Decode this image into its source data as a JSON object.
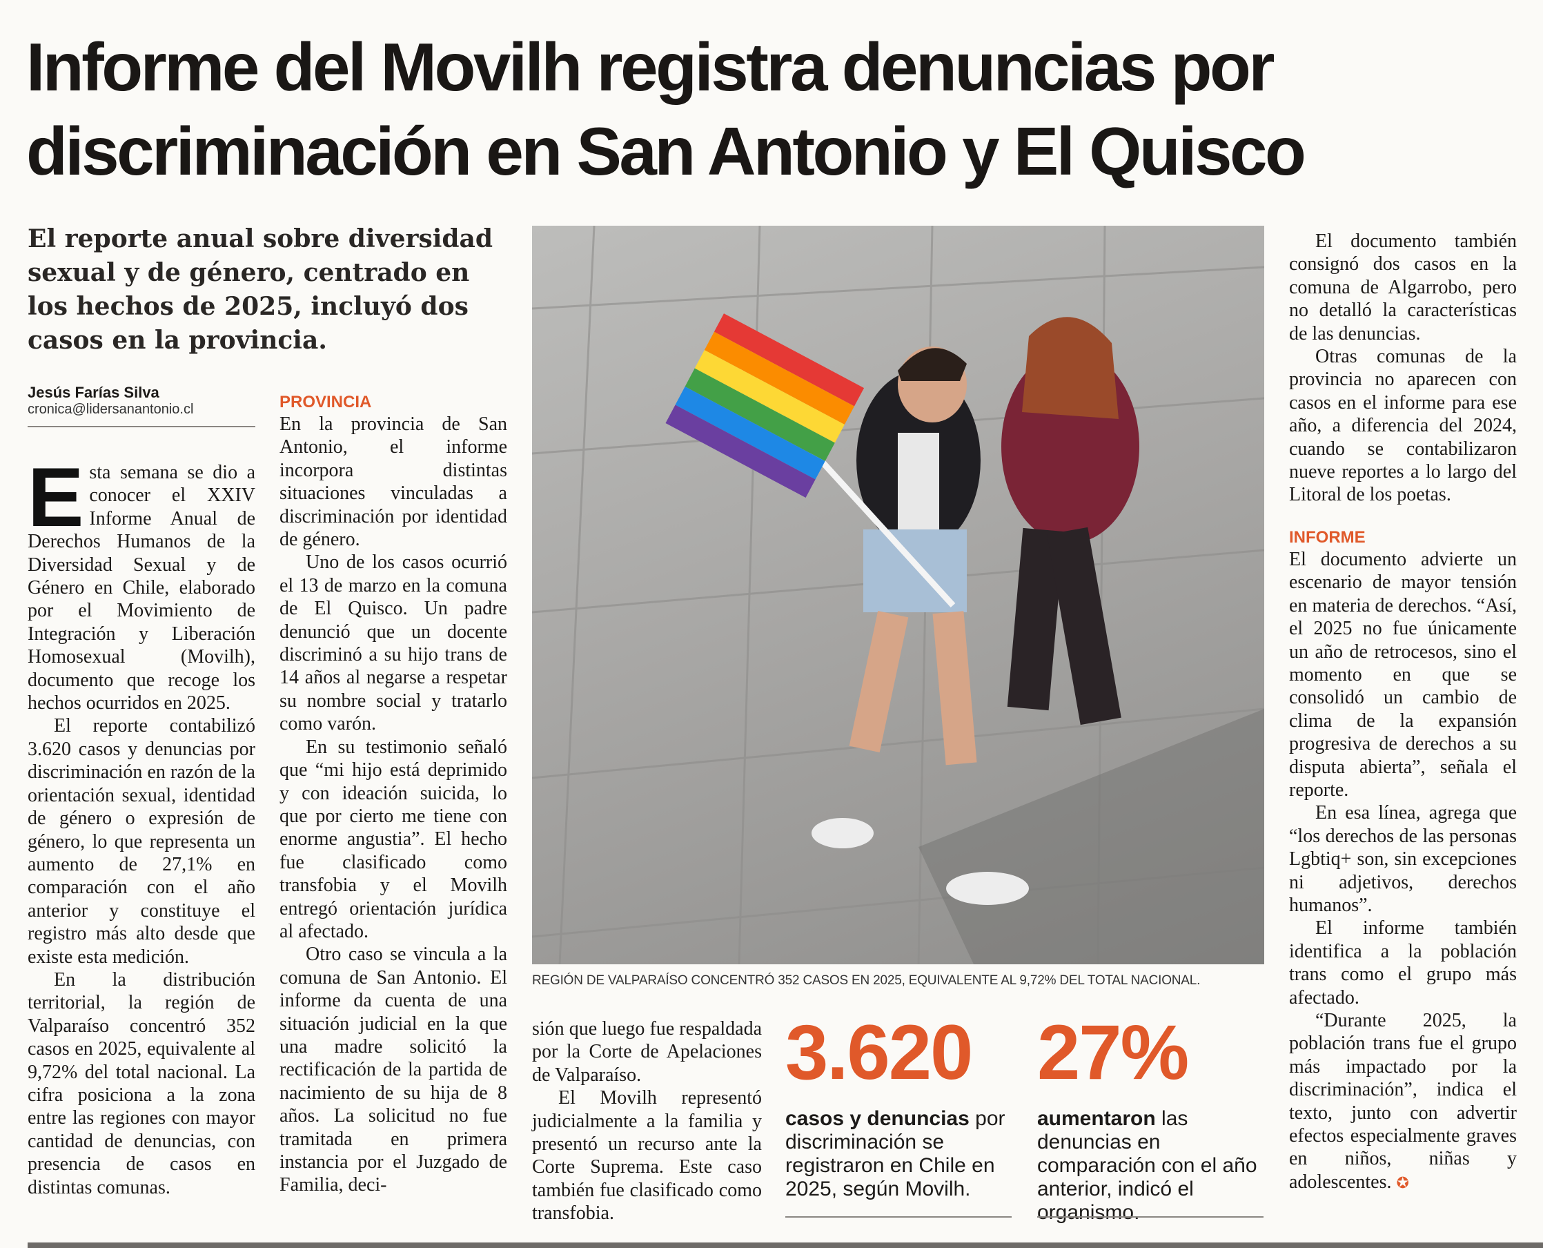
{
  "headline": [
    "Informe del Movilh registra denuncias por",
    "discriminación en San Antonio y El Quisco"
  ],
  "subtitle": "El reporte anual sobre diversidad sexual y de género, centrado en los hechos de 2025, incluyó dos casos en la provincia.",
  "byline": {
    "name": "Jesús Farías Silva",
    "email": "cronica@lidersanantonio.cl"
  },
  "col1": {
    "drop_cap": "E",
    "paragraphs": [
      "sta semana se dio a conocer el XXIV Informe Anual de Derechos Humanos de la Diversidad Sexual y de Género en Chile, elaborado por el Movimiento de Integración y Liberación Homosexual (Movilh), documento que recoge los hechos ocurridos en 2025.",
      "El reporte contabilizó 3.620 casos y denuncias por discriminación en razón de la orientación sexual, identidad de género o expresión de género, lo que representa un aumento de 27,1% en comparación con el año anterior y constituye el registro más alto desde que existe esta medición.",
      "En la distribución territorial, la región de Valparaíso concentró 352 casos en 2025, equivalente al 9,72% del total nacional. La cifra posiciona a la zona entre las regiones con mayor cantidad de denuncias, con presencia de casos en distintas comunas."
    ]
  },
  "col2": {
    "section": "PROVINCIA",
    "paragraphs": [
      "En la provincia de San Antonio, el informe incorpora distintas situaciones vinculadas a discriminación por identidad de género.",
      "Uno de los casos ocurrió el 13 de marzo en la comuna de El Quisco. Un padre denunció que un docente discriminó a su hijo trans de 14 años al negarse a respetar su nombre social y tratarlo como varón.",
      "En su testimonio señaló que “mi hijo está deprimido y con ideación suicida, lo que por cierto me tiene con enorme angustia”. El hecho fue clasificado como transfobia y el Movilh entregó orientación jurídica al afectado.",
      "Otro caso se vincula a la comuna de San Antonio. El informe da cuenta de una situación judicial en la que una madre solicitó la rectificación de la partida de nacimiento de su hija de 8 años. La solicitud no fue tramitada en primera instancia por el Juzgado de Familia, deci-"
    ]
  },
  "col3": {
    "paragraphs": [
      "sión que luego fue respaldada por la Corte de Apelaciones de Valparaíso.",
      "El Movilh representó judicialmente a la familia y presentó un recurso ante la Corte Suprema. Este caso también fue clasificado como transfobia."
    ]
  },
  "photo_caption": "REGIÓN DE VALPARAÍSO CONCENTRÓ 352 CASOS EN 2025, EQUIVALENTE AL 9,72% DEL TOTAL NACIONAL.",
  "stats": [
    {
      "value": "3.620",
      "bold": "casos y denuncias",
      "text": " por discriminación se registraron en Chile en 2025, según Movilh."
    },
    {
      "value": "27%",
      "bold": "aumentaron",
      "text": " las denuncias en comparación con el año anterior, indicó el organismo."
    }
  ],
  "col4": {
    "paragraphs_a": [
      "El documento también consignó dos casos en la comuna de Algarrobo, pero no detalló la características de las denuncias.",
      "Otras comunas de la provincia no aparecen con casos en el informe para ese año, a diferencia del 2024, cuando se contabilizaron nueve reportes a lo largo del Litoral de los poetas."
    ],
    "section": "INFORME",
    "paragraphs_b": [
      "El documento advierte un escenario de mayor tensión en materia de derechos. “Así, el 2025 no fue únicamente un año de retrocesos, sino el momento en que se consolidó un cambio de clima de la expansión progresiva de derechos a su disputa abierta”, señala el reporte.",
      "En esa línea, agrega que “los derechos de las personas Lgbtiq+ son, sin excepciones ni adjetivos, derechos humanos”.",
      "El informe también identifica a la población trans como el grupo más afectado.",
      "“Durante 2025, la población trans fue el grupo más impactado por la discriminación”, indica el texto, junto con advertir efectos especialmente graves en niños, niñas y adolescentes."
    ]
  },
  "colors": {
    "accent": "#e0592a",
    "text": "#1c1a18"
  }
}
